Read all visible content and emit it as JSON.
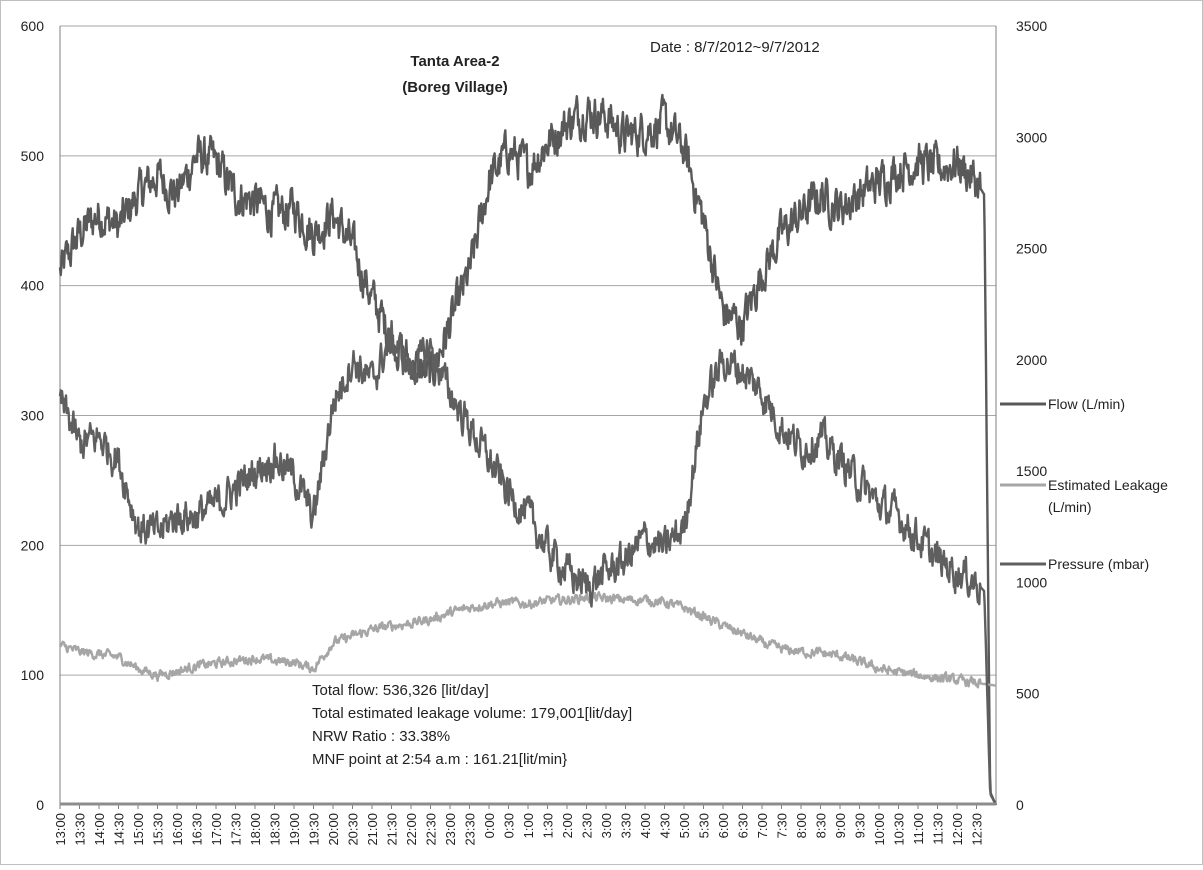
{
  "chart_data": {
    "type": "line",
    "title": "Tanta Area-2",
    "subtitle": "(Boreg Village)",
    "date_label": "Date : 8/7/2012~9/7/2012",
    "x_tick_labels": [
      "13:00",
      "13:30",
      "14:00",
      "14:30",
      "15:00",
      "15:30",
      "16:00",
      "16:30",
      "17:00",
      "17:30",
      "18:00",
      "18:30",
      "19:00",
      "19:30",
      "20:00",
      "20:30",
      "21:00",
      "21:30",
      "22:00",
      "22:30",
      "23:00",
      "23:30",
      "0:00",
      "0:30",
      "1:00",
      "1:30",
      "2:00",
      "2:30",
      "3:00",
      "3:30",
      "4:00",
      "4:30",
      "5:00",
      "5:30",
      "6:00",
      "6:30",
      "7:00",
      "7:30",
      "8:00",
      "8:30",
      "9:00",
      "9:30",
      "10:00",
      "10:30",
      "11:00",
      "11:30",
      "12:00",
      "12:30"
    ],
    "y_left": {
      "min": 0,
      "max": 600,
      "ticks": [
        "0",
        "100",
        "200",
        "300",
        "400",
        "500",
        "600"
      ]
    },
    "y_right": {
      "min": 0,
      "max": 3500,
      "ticks": [
        "0",
        "500",
        "1000",
        "1500",
        "2000",
        "2500",
        "3000",
        "3500"
      ]
    },
    "grid": true,
    "legend_position": "right",
    "series": [
      {
        "name": "Flow (L/min)",
        "axis": "left",
        "color": "#595959",
        "x": [
          0,
          0.5,
          1,
          1.5,
          2,
          2.5,
          3,
          3.5,
          4,
          4.5,
          5,
          5.5,
          6,
          6.5,
          7,
          7.5,
          8,
          8.5,
          9,
          9.5,
          10,
          10.5,
          11,
          11.5,
          12,
          12.5,
          13,
          13.5,
          14,
          14.5,
          15,
          15.5,
          16,
          16.5,
          17,
          17.5,
          18,
          18.5,
          19,
          19.5,
          20,
          20.5,
          21,
          21.5,
          22,
          22.5,
          23,
          23.5,
          23.7,
          23.85,
          24
        ],
        "values": [
          410,
          440,
          455,
          445,
          470,
          485,
          470,
          500,
          495,
          470,
          465,
          455,
          460,
          440,
          455,
          430,
          390,
          360,
          340,
          330,
          370,
          410,
          480,
          505,
          490,
          510,
          525,
          535,
          530,
          515,
          520,
          525,
          505,
          450,
          380,
          370,
          410,
          440,
          455,
          470,
          460,
          470,
          480,
          490,
          495,
          490,
          495,
          480,
          470,
          10,
          0
        ]
      },
      {
        "name": "Estimated Leakage\n(L/min)",
        "axis": "left",
        "color": "#a6a6a6",
        "x": [
          0,
          0.5,
          1,
          1.5,
          2,
          2.5,
          3,
          3.5,
          4,
          4.5,
          5,
          5.5,
          6,
          6.5,
          7,
          7.5,
          8,
          8.5,
          9,
          9.5,
          10,
          10.5,
          11,
          11.5,
          12,
          12.5,
          13,
          13.5,
          14,
          14.5,
          15,
          15.5,
          16,
          16.5,
          17,
          17.5,
          18,
          18.5,
          19,
          19.5,
          20,
          20.5,
          21,
          21.5,
          22,
          22.5,
          23,
          23.5,
          24
        ],
        "values": [
          123,
          118,
          116,
          114,
          105,
          100,
          103,
          107,
          109,
          111,
          113,
          111,
          110,
          105,
          125,
          130,
          135,
          138,
          140,
          143,
          148,
          152,
          155,
          156,
          155,
          157,
          158,
          160,
          159,
          158,
          158,
          156,
          152,
          145,
          138,
          132,
          125,
          120,
          118,
          117,
          115,
          110,
          105,
          102,
          100,
          98,
          96,
          94,
          92
        ]
      },
      {
        "name": "Pressure (mbar)",
        "axis": "right",
        "color": "#5f5f5f",
        "x": [
          0,
          0.5,
          1,
          1.5,
          2,
          2.5,
          3,
          3.5,
          4,
          4.5,
          5,
          5.5,
          6,
          6.5,
          7,
          7.5,
          8,
          8.5,
          9,
          9.5,
          10,
          10.5,
          11,
          11.5,
          12,
          12.5,
          13,
          13.5,
          14,
          14.5,
          15,
          15.5,
          16,
          16.5,
          17,
          17.5,
          18,
          18.5,
          19,
          19.5,
          20,
          20.5,
          21,
          21.5,
          22,
          22.5,
          23,
          23.5,
          23.7,
          23.85,
          24
        ],
        "values": [
          1820,
          1620,
          1650,
          1550,
          1250,
          1220,
          1300,
          1300,
          1350,
          1420,
          1500,
          1560,
          1480,
          1290,
          1800,
          2000,
          1900,
          2100,
          1950,
          2050,
          1850,
          1700,
          1550,
          1400,
          1300,
          1150,
          1050,
          980,
          1050,
          1100,
          1200,
          1150,
          1250,
          1800,
          2000,
          1950,
          1850,
          1700,
          1600,
          1650,
          1550,
          1450,
          1350,
          1300,
          1200,
          1100,
          1050,
          1000,
          960,
          50,
          0
        ]
      }
    ],
    "annotations": [
      "Total flow: 536,326 [lit/day]",
      "Total estimated leakage volume: 179,001[lit/day]",
      "NRW Ratio : 33.38%",
      "MNF point at 2:54 a.m : 161.21[lit/min}"
    ]
  }
}
